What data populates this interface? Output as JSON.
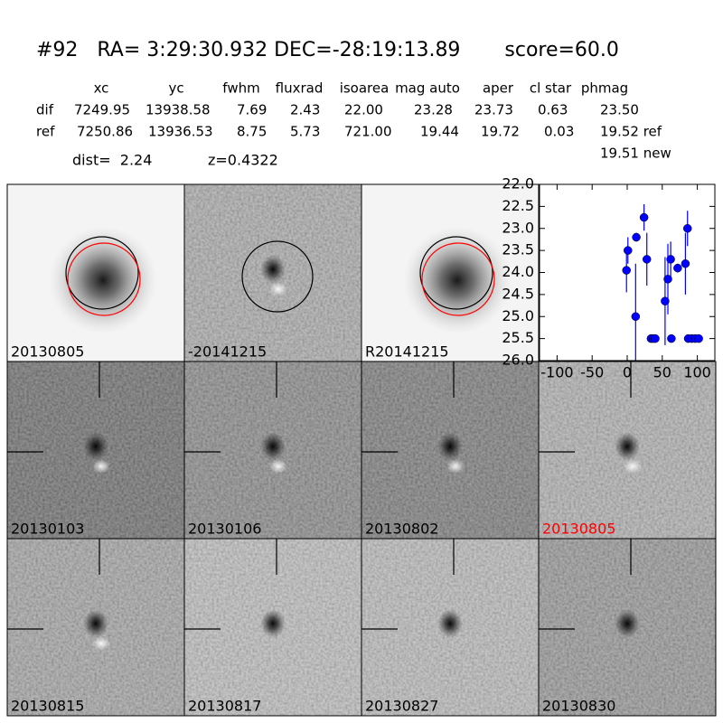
{
  "header": {
    "title": "#92   RA= 3:29:30.932 DEC=-28:19:13.89       score=60.0"
  },
  "table": {
    "columns": [
      "xc",
      "yc",
      "fwhm",
      "fluxrad",
      "isoarea",
      "mag auto",
      "aper",
      "cl star",
      "phmag"
    ],
    "rows": [
      [
        "dif",
        "7249.95",
        "13938.58",
        "7.69",
        "2.43",
        "22.00",
        "23.28",
        "23.73",
        "0.63",
        "23.50"
      ],
      [
        "ref",
        "7250.86",
        "13936.53",
        "8.75",
        "5.73",
        "721.00",
        "19.44",
        "19.72",
        "0.03",
        "19.52 ref"
      ]
    ],
    "extra": "19.51 new"
  },
  "dist": "dist=  2.24",
  "z": "z=0.4322",
  "stamps": [
    {
      "label": "20130805"
    },
    {
      "label": "-20141215"
    },
    {
      "label": "R20141215"
    },
    {
      "label": "20130103"
    },
    {
      "label": "20130106"
    },
    {
      "label": "20130802"
    },
    {
      "label": "20130805",
      "color": "#ff0000"
    },
    {
      "label": "20130815"
    },
    {
      "label": "20130817"
    },
    {
      "label": "20130827"
    },
    {
      "label": "20130830"
    }
  ],
  "chart_data": {
    "type": "scatter",
    "x": [
      -1,
      1,
      12,
      13,
      24,
      28,
      34,
      37,
      40,
      54,
      58,
      62,
      63,
      72,
      83,
      86,
      87,
      92,
      97,
      102
    ],
    "series": [
      {
        "color": "#0000ff",
        "values": [
          23.95,
          23.5,
          25.0,
          23.2,
          22.75,
          23.7,
          25.5,
          25.5,
          25.5,
          24.65,
          24.15,
          23.7,
          25.5,
          23.9,
          23.8,
          23.0,
          25.5,
          25.5,
          25.5,
          25.5
        ],
        "errors": [
          0.5,
          0.3,
          1.2,
          0.1,
          0.3,
          0.6,
          0.05,
          0.05,
          0.05,
          1.0,
          0.8,
          0.4,
          0.05,
          0.1,
          0.7,
          0.4,
          0.05,
          0.05,
          0.05,
          0.05
        ]
      }
    ],
    "xlim": [
      -125,
      125
    ],
    "ylim": [
      26,
      22
    ],
    "xticks": [
      -100,
      -50,
      0,
      50,
      100
    ],
    "yticks": [
      {
        "value": 22,
        "label": "22.0"
      },
      22.5,
      {
        "value": 23,
        "label": "23.0"
      },
      23.5,
      {
        "value": 24,
        "label": "24.0"
      },
      24.5,
      {
        "value": 25,
        "label": "25.0"
      },
      25.5,
      {
        "value": 26,
        "label": "26.0"
      }
    ]
  }
}
